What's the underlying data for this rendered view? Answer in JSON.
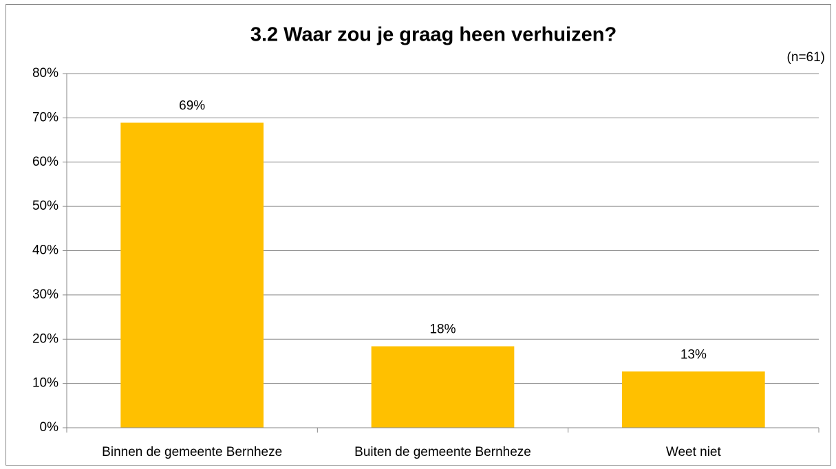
{
  "chart_data": {
    "type": "bar",
    "title": "3.2 Waar zou je graag heen verhuizen?",
    "subtitle": "(n=61)",
    "categories": [
      "Binnen de gemeente Bernheze",
      "Buiten de gemeente Bernheze",
      "Weet niet"
    ],
    "values": [
      68.9,
      18.4,
      12.7
    ],
    "value_labels": [
      "69%",
      "18%",
      "13%"
    ],
    "color": "#ffc000",
    "ylim": [
      0,
      80
    ],
    "yticks": [
      {
        "value": 0,
        "label": "0%"
      },
      {
        "value": 10,
        "label": "10%"
      },
      {
        "value": 20,
        "label": "20%"
      },
      {
        "value": 30,
        "label": "30%"
      },
      {
        "value": 40,
        "label": "40%"
      },
      {
        "value": 50,
        "label": "50%"
      },
      {
        "value": 60,
        "label": "60%"
      },
      {
        "value": 70,
        "label": "70%"
      },
      {
        "value": 80,
        "label": "80%"
      }
    ],
    "grid": true
  }
}
